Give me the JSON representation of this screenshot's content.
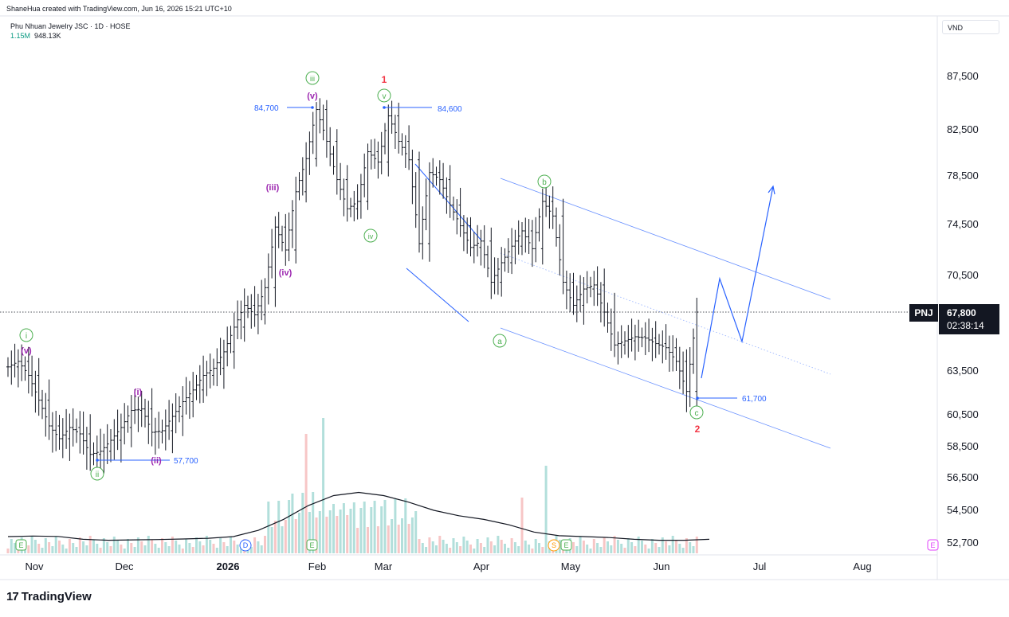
{
  "header": {
    "attribution": "ShaneHua created with TradingView.com, Jun 16, 2026 15:21 UTC+10",
    "symbol_line": "Phu Nhuan Jewelry JSC · 1D · HOSE",
    "volume_a": "1.15M",
    "volume_b": "948.13K",
    "currency": "VND"
  },
  "footer": {
    "brand": "TradingView",
    "brand_mark": "17"
  },
  "price_tag": {
    "ticker": "PNJ",
    "price": "67,800",
    "countdown": "02:38:14"
  },
  "colors": {
    "price_line": "#131722",
    "annotation_blue": "#2962ff",
    "channel_blue": "#2962ff",
    "green_circle": "#4caf50",
    "purple_label": "#9c27b0",
    "red_label": "#f23645",
    "volume_up": "#b2dfdb",
    "volume_down": "#f7c6c6",
    "ma_line": "#131722"
  },
  "chart_data": {
    "type": "ohlc",
    "y_axis": {
      "ticks": [
        52700,
        54500,
        56500,
        58500,
        60500,
        63500,
        67800,
        70500,
        74500,
        78500,
        82500,
        87500
      ],
      "tick_labels": [
        "52,700",
        "54,500",
        "56,500",
        "58,500",
        "60,500",
        "63,500",
        "67,800",
        "70,500",
        "74,500",
        "78,500",
        "82,500",
        "87,500"
      ]
    },
    "x_axis": {
      "labels": [
        "Nov",
        "Dec",
        "2026",
        "Feb",
        "Mar",
        "Apr",
        "May",
        "Jun",
        "Jul",
        "Aug"
      ],
      "bold": [
        "2026"
      ]
    },
    "close_series": [
      {
        "i": 0,
        "c": 63800
      },
      {
        "i": 3,
        "c": 64200
      },
      {
        "i": 6,
        "c": 63200
      },
      {
        "i": 9,
        "c": 61500
      },
      {
        "i": 12,
        "c": 59800
      },
      {
        "i": 15,
        "c": 59000
      },
      {
        "i": 18,
        "c": 59700
      },
      {
        "i": 21,
        "c": 59300
      },
      {
        "i": 24,
        "c": 58000
      },
      {
        "i": 27,
        "c": 58200
      },
      {
        "i": 30,
        "c": 58900
      },
      {
        "i": 33,
        "c": 59700
      },
      {
        "i": 36,
        "c": 60800
      },
      {
        "i": 39,
        "c": 60900
      },
      {
        "i": 42,
        "c": 59400
      },
      {
        "i": 45,
        "c": 59500
      },
      {
        "i": 48,
        "c": 60400
      },
      {
        "i": 51,
        "c": 61400
      },
      {
        "i": 54,
        "c": 62200
      },
      {
        "i": 57,
        "c": 63200
      },
      {
        "i": 60,
        "c": 63700
      },
      {
        "i": 63,
        "c": 64900
      },
      {
        "i": 66,
        "c": 66700
      },
      {
        "i": 69,
        "c": 68300
      },
      {
        "i": 72,
        "c": 67600
      },
      {
        "i": 75,
        "c": 69600
      },
      {
        "i": 78,
        "c": 74300
      },
      {
        "i": 81,
        "c": 72500
      },
      {
        "i": 84,
        "c": 77200
      },
      {
        "i": 87,
        "c": 80000
      },
      {
        "i": 90,
        "c": 84400
      },
      {
        "i": 93,
        "c": 81500
      },
      {
        "i": 96,
        "c": 78200
      },
      {
        "i": 99,
        "c": 75800
      },
      {
        "i": 102,
        "c": 76400
      },
      {
        "i": 105,
        "c": 80600
      },
      {
        "i": 108,
        "c": 79700
      },
      {
        "i": 111,
        "c": 83800
      },
      {
        "i": 114,
        "c": 81500
      },
      {
        "i": 117,
        "c": 79900
      },
      {
        "i": 120,
        "c": 73000
      },
      {
        "i": 123,
        "c": 78800
      },
      {
        "i": 126,
        "c": 78200
      },
      {
        "i": 129,
        "c": 76100
      },
      {
        "i": 132,
        "c": 74400
      },
      {
        "i": 135,
        "c": 72700
      },
      {
        "i": 138,
        "c": 73200
      },
      {
        "i": 141,
        "c": 70000
      },
      {
        "i": 144,
        "c": 71500
      },
      {
        "i": 147,
        "c": 72800
      },
      {
        "i": 150,
        "c": 74000
      },
      {
        "i": 153,
        "c": 72600
      },
      {
        "i": 156,
        "c": 76400
      },
      {
        "i": 159,
        "c": 75200
      },
      {
        "i": 162,
        "c": 70000
      },
      {
        "i": 165,
        "c": 68300
      },
      {
        "i": 168,
        "c": 69500
      },
      {
        "i": 171,
        "c": 69800
      },
      {
        "i": 174,
        "c": 67800
      },
      {
        "i": 177,
        "c": 65400
      },
      {
        "i": 180,
        "c": 65700
      },
      {
        "i": 183,
        "c": 66000
      },
      {
        "i": 186,
        "c": 65900
      },
      {
        "i": 189,
        "c": 65500
      },
      {
        "i": 192,
        "c": 65200
      },
      {
        "i": 195,
        "c": 64200
      },
      {
        "i": 198,
        "c": 62100
      },
      {
        "i": 201,
        "c": 67800
      }
    ],
    "volume": {
      "series_name": "",
      "ma_values": [
        53050,
        53080,
        53060,
        52900,
        52850,
        52870,
        52890,
        52920,
        52960,
        53050,
        53400,
        54000,
        54800,
        55400,
        55600,
        55400,
        55000,
        54500,
        54200,
        54000,
        53700,
        53300,
        53100,
        53050,
        53000,
        52900,
        52850,
        52850,
        52900
      ]
    },
    "levels": [
      {
        "label": "84,700",
        "value": 84700
      },
      {
        "label": "84,600",
        "value": 84600
      },
      {
        "label": "57,700",
        "value": 57700
      },
      {
        "label": "61,700",
        "value": 61700
      }
    ],
    "wave_labels": {
      "green": [
        "i",
        "ii",
        "iii",
        "iv",
        "v",
        "a",
        "b",
        "c"
      ],
      "purple": [
        "(v)",
        "(i)",
        "(ii)",
        "(iii)",
        "(iv)",
        "(v)"
      ],
      "red": [
        "1",
        "2"
      ]
    },
    "events": [
      "E",
      "D",
      "E",
      "S",
      "E",
      "E"
    ]
  }
}
